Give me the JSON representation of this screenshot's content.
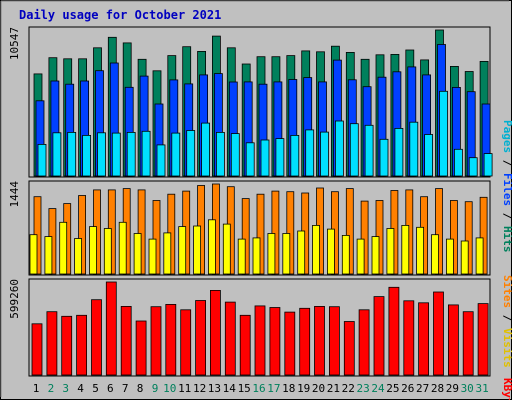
{
  "chart_data": [
    {
      "type": "bar",
      "title": "Daily usage for October 2021",
      "ylabel_max": "10547",
      "legend": [
        "Pages",
        "Files",
        "Hits"
      ],
      "categories": [
        "1",
        "2",
        "3",
        "4",
        "5",
        "6",
        "7",
        "8",
        "9",
        "10",
        "11",
        "12",
        "13",
        "14",
        "15",
        "16",
        "17",
        "18",
        "19",
        "20",
        "21",
        "22",
        "23",
        "24",
        "25",
        "26",
        "27",
        "28",
        "29",
        "30",
        "31"
      ],
      "weekend_days": [
        "2",
        "3",
        "9",
        "10",
        "16",
        "17",
        "23",
        "24",
        "30",
        "31"
      ],
      "series": [
        {
          "name": "Hits",
          "color": "#00805c",
          "values": [
            7375,
            8544,
            8468,
            8469,
            9258,
            10022,
            9613,
            8430,
            7597,
            8695,
            9337,
            9000,
            10105,
            9258,
            8088,
            8620,
            8620,
            8700,
            9035,
            8970,
            9380,
            8930,
            8430,
            8755,
            8785,
            9100,
            8390,
            10547,
            7920,
            7550,
            8280
          ]
        },
        {
          "name": "Files",
          "color": "#0040ff",
          "values": [
            5430,
            6860,
            6630,
            6860,
            7610,
            8160,
            6410,
            7220,
            5200,
            6940,
            6650,
            7300,
            7400,
            6790,
            6800,
            6630,
            6800,
            6970,
            7110,
            6800,
            8370,
            6950,
            6450,
            7140,
            7530,
            7880,
            7300,
            9500,
            6400,
            6090,
            5200
          ]
        },
        {
          "name": "Pages",
          "color": "#00e0ff",
          "values": [
            2280,
            3120,
            3150,
            2930,
            3120,
            3100,
            3150,
            3230,
            2250,
            3100,
            3290,
            3820,
            3150,
            3060,
            2400,
            2600,
            2700,
            2930,
            3330,
            3170,
            3970,
            3780,
            3660,
            2650,
            3440,
            3890,
            3000,
            6120,
            1930,
            1320,
            1620
          ]
        }
      ]
    },
    {
      "type": "bar",
      "ylabel_max": "1444",
      "legend": [
        "Sites",
        "Visits"
      ],
      "categories": [
        "1",
        "2",
        "3",
        "4",
        "5",
        "6",
        "7",
        "8",
        "9",
        "10",
        "11",
        "12",
        "13",
        "14",
        "15",
        "16",
        "17",
        "18",
        "19",
        "20",
        "21",
        "22",
        "23",
        "24",
        "25",
        "26",
        "27",
        "28",
        "29",
        "30",
        "31"
      ],
      "series": [
        {
          "name": "Visits",
          "color": "#ff8000",
          "values": [
            1240,
            1050,
            1130,
            1260,
            1350,
            1350,
            1370,
            1350,
            1180,
            1280,
            1330,
            1420,
            1444,
            1400,
            1210,
            1280,
            1330,
            1320,
            1300,
            1380,
            1320,
            1370,
            1170,
            1180,
            1340,
            1350,
            1240,
            1370,
            1180,
            1160,
            1230
          ]
        },
        {
          "name": "Sites",
          "color": "#ffff00",
          "values": [
            630,
            600,
            830,
            570,
            760,
            730,
            830,
            650,
            560,
            660,
            760,
            770,
            870,
            800,
            560,
            580,
            650,
            650,
            690,
            780,
            720,
            620,
            560,
            600,
            730,
            780,
            750,
            630,
            560,
            530,
            580
          ]
        }
      ]
    },
    {
      "type": "bar",
      "ylabel_max": "599260",
      "legend": [
        "KBytes"
      ],
      "categories": [
        "1",
        "2",
        "3",
        "4",
        "5",
        "6",
        "7",
        "8",
        "9",
        "10",
        "11",
        "12",
        "13",
        "14",
        "15",
        "16",
        "17",
        "18",
        "19",
        "20",
        "21",
        "22",
        "23",
        "24",
        "25",
        "26",
        "27",
        "28",
        "29",
        "30",
        "31"
      ],
      "series": [
        {
          "name": "KBytes",
          "color": "#ff0000",
          "values": [
            330000,
            408000,
            378000,
            385000,
            485000,
            599260,
            442000,
            348000,
            440000,
            455000,
            420000,
            480000,
            545000,
            470000,
            385000,
            445000,
            435000,
            405000,
            430000,
            442000,
            440000,
            345000,
            420000,
            505000,
            565000,
            478000,
            465000,
            535000,
            452000,
            408000,
            460000
          ]
        }
      ]
    }
  ]
}
